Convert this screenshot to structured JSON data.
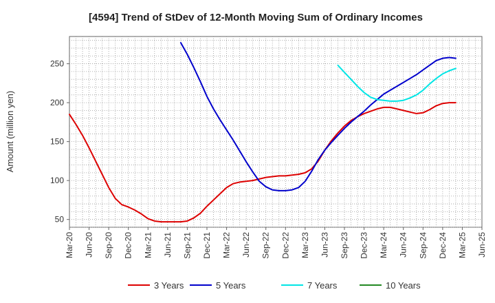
{
  "chart_data": {
    "type": "line",
    "title": "[4594]  Trend of StDev of 12-Month Moving Sum of Ordinary Incomes",
    "ylabel": "Amount (million yen)",
    "xlabel": "",
    "ylim": [
      40,
      285
    ],
    "yticks": [
      50,
      100,
      150,
      200,
      250
    ],
    "xticks": [
      "Mar-20",
      "Jun-20",
      "Sep-20",
      "Dec-20",
      "Mar-21",
      "Jun-21",
      "Sep-21",
      "Dec-21",
      "Mar-22",
      "Jun-22",
      "Sep-22",
      "Dec-22",
      "Mar-23",
      "Jun-23",
      "Sep-23",
      "Dec-23",
      "Mar-24",
      "Jun-24",
      "Sep-24",
      "Dec-24",
      "Mar-25",
      "Jun-25"
    ],
    "grid": true,
    "legend_position": "bottom",
    "series": [
      {
        "name": "3 Years",
        "color": "#dd0000",
        "x_start": "Mar-20",
        "values": [
          185,
          172,
          158,
          142,
          125,
          108,
          91,
          77,
          69,
          66,
          62,
          57,
          51,
          48,
          47,
          47,
          47,
          47,
          48,
          52,
          58,
          67,
          75,
          83,
          91,
          96,
          98,
          99,
          100,
          102,
          104,
          105,
          106,
          106,
          107,
          108,
          110,
          115,
          125,
          139,
          151,
          161,
          170,
          177,
          182,
          186,
          189,
          192,
          194,
          194,
          192,
          190,
          188,
          186,
          187,
          191,
          196,
          199,
          200,
          200
        ]
      },
      {
        "name": "5 Years",
        "color": "#0000cc",
        "x_start": "Aug-21",
        "values": [
          277,
          262,
          245,
          227,
          208,
          192,
          178,
          165,
          152,
          138,
          124,
          111,
          99,
          92,
          88,
          87,
          87,
          88,
          91,
          99,
          112,
          127,
          139,
          149,
          158,
          167,
          175,
          182,
          189,
          197,
          204,
          211,
          216,
          221,
          226,
          231,
          236,
          242,
          248,
          254,
          257,
          258,
          257
        ]
      },
      {
        "name": "7 Years",
        "color": "#00e5e5",
        "x_start": "Aug-23",
        "values": [
          248,
          239,
          230,
          221,
          213,
          207,
          204,
          203,
          202,
          202,
          203,
          206,
          210,
          216,
          224,
          231,
          237,
          241,
          244
        ]
      },
      {
        "name": "10 Years",
        "color": "#228822",
        "x_start": "Mar-20",
        "values": []
      }
    ]
  }
}
